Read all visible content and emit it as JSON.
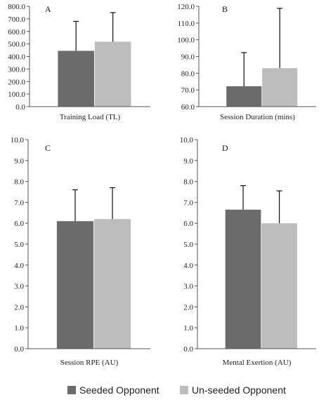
{
  "legend": {
    "items": [
      {
        "label": "Seeded Opponent",
        "color": "#6b6b6b"
      },
      {
        "label": "Un-seeded Opponent",
        "color": "#bdbdbd"
      }
    ]
  },
  "chart_data": [
    {
      "type": "bar",
      "panel_label": "A",
      "xlabel": "Training Load (TL)",
      "ylim": [
        0,
        800
      ],
      "yticks": [
        "0.0",
        "100.0",
        "200.0",
        "300.0",
        "400.0",
        "500.0",
        "600.0",
        "700.0",
        "800.0"
      ],
      "series": [
        {
          "name": "Seeded Opponent",
          "value": 445,
          "error_upper": 680
        },
        {
          "name": "Un-seeded Opponent",
          "value": 518,
          "error_upper": 750
        }
      ]
    },
    {
      "type": "bar",
      "panel_label": "B",
      "xlabel": "Session Duration (mins)",
      "ylim": [
        60,
        120
      ],
      "yticks": [
        "60.0",
        "70.0",
        "80.0",
        "90.0",
        "100.0",
        "110.0",
        "120.0"
      ],
      "series": [
        {
          "name": "Seeded Opponent",
          "value": 72.2,
          "error_upper": 92.3
        },
        {
          "name": "Un-seeded Opponent",
          "value": 83.0,
          "error_upper": 118.8
        }
      ]
    },
    {
      "type": "bar",
      "panel_label": "C",
      "xlabel": "Session RPE (AU)",
      "ylim": [
        0,
        10
      ],
      "yticks": [
        "0.0",
        "1.0",
        "2.0",
        "3.0",
        "4.0",
        "5.0",
        "6.0",
        "7.0",
        "8.0",
        "9.0",
        "10.0"
      ],
      "series": [
        {
          "name": "Seeded Opponent",
          "value": 6.1,
          "error_upper": 7.6
        },
        {
          "name": "Un-seeded Opponent",
          "value": 6.2,
          "error_upper": 7.7
        }
      ]
    },
    {
      "type": "bar",
      "panel_label": "D",
      "xlabel": "Mental Exertion (AU)",
      "ylim": [
        0,
        10
      ],
      "yticks": [
        "0.0",
        "1.0",
        "2.0",
        "3.0",
        "4.0",
        "5.0",
        "6.0",
        "7.0",
        "8.0",
        "9.0",
        "10.0"
      ],
      "series": [
        {
          "name": "Seeded Opponent",
          "value": 6.65,
          "error_upper": 7.8
        },
        {
          "name": "Un-seeded Opponent",
          "value": 6.0,
          "error_upper": 7.55
        }
      ]
    }
  ]
}
